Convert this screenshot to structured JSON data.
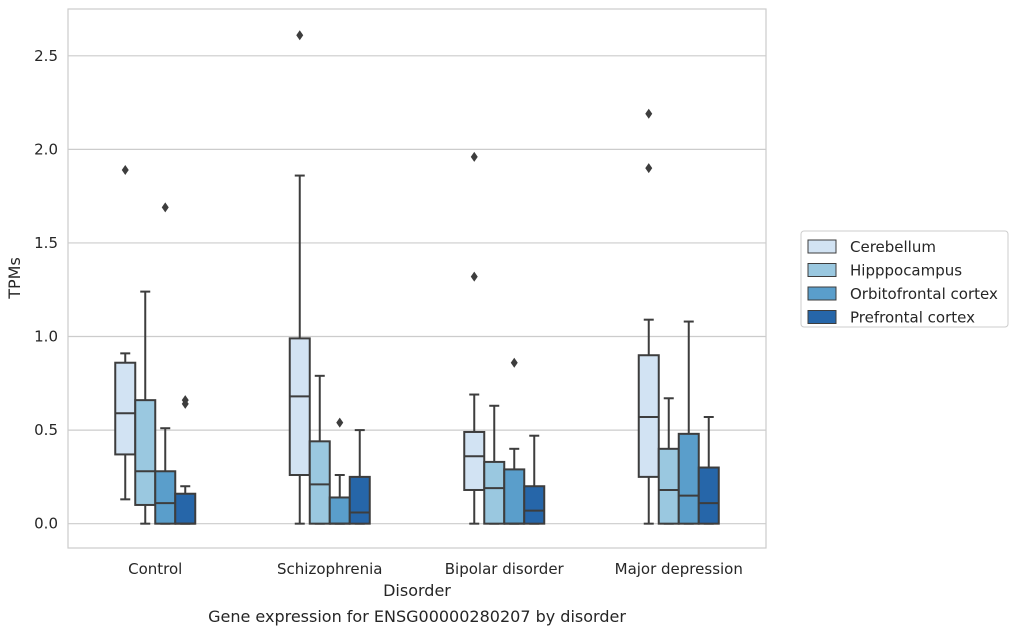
{
  "chart_data": {
    "type": "box",
    "caption": "Gene expression for ENSG00000280207 by disorder",
    "xlabel": "Disorder",
    "ylabel": "TPMs",
    "ylim": [
      -0.13,
      2.75
    ],
    "yticks": [
      "0.0",
      "0.5",
      "1.0",
      "1.5",
      "2.0",
      "2.5"
    ],
    "categories": [
      "Control",
      "Schizophrenia",
      "Bipolar disorder",
      "Major depression"
    ],
    "grid": "horizontal",
    "legend_position": "right",
    "series": [
      {
        "name": "Cerebellum",
        "color": "#d2e3f3",
        "boxes": [
          {
            "min": 0.13,
            "q1": 0.37,
            "median": 0.59,
            "q3": 0.86,
            "max": 0.91,
            "outliers": [
              1.89
            ]
          },
          {
            "min": 0.0,
            "q1": 0.26,
            "median": 0.68,
            "q3": 0.99,
            "max": 1.86,
            "outliers": [
              2.61
            ]
          },
          {
            "min": 0.0,
            "q1": 0.18,
            "median": 0.36,
            "q3": 0.49,
            "max": 0.69,
            "outliers": [
              1.32,
              1.96
            ]
          },
          {
            "min": 0.0,
            "q1": 0.25,
            "median": 0.57,
            "q3": 0.9,
            "max": 1.09,
            "outliers": [
              1.9,
              2.19
            ]
          }
        ]
      },
      {
        "name": "Hipppocampus",
        "color": "#9ac8e0",
        "boxes": [
          {
            "min": 0.0,
            "q1": 0.1,
            "median": 0.28,
            "q3": 0.66,
            "max": 1.24,
            "outliers": []
          },
          {
            "min": 0.0,
            "q1": 0.0,
            "median": 0.21,
            "q3": 0.44,
            "max": 0.79,
            "outliers": []
          },
          {
            "min": 0.0,
            "q1": 0.0,
            "median": 0.19,
            "q3": 0.33,
            "max": 0.63,
            "outliers": []
          },
          {
            "min": 0.0,
            "q1": 0.0,
            "median": 0.18,
            "q3": 0.4,
            "max": 0.67,
            "outliers": []
          }
        ]
      },
      {
        "name": "Orbitofrontal cortex",
        "color": "#5a9ecb",
        "boxes": [
          {
            "min": 0.0,
            "q1": 0.0,
            "median": 0.11,
            "q3": 0.28,
            "max": 0.51,
            "outliers": [
              1.69
            ]
          },
          {
            "min": 0.0,
            "q1": 0.0,
            "median": 0.0,
            "q3": 0.14,
            "max": 0.26,
            "outliers": [
              0.54
            ]
          },
          {
            "min": 0.0,
            "q1": 0.0,
            "median": 0.0,
            "q3": 0.29,
            "max": 0.4,
            "outliers": [
              0.86
            ]
          },
          {
            "min": 0.0,
            "q1": 0.0,
            "median": 0.15,
            "q3": 0.48,
            "max": 1.08,
            "outliers": []
          }
        ]
      },
      {
        "name": "Prefrontal cortex",
        "color": "#2666a9",
        "boxes": [
          {
            "min": 0.0,
            "q1": 0.0,
            "median": 0.0,
            "q3": 0.16,
            "max": 0.2,
            "outliers": [
              0.64,
              0.66
            ]
          },
          {
            "min": 0.0,
            "q1": 0.0,
            "median": 0.06,
            "q3": 0.25,
            "max": 0.5,
            "outliers": []
          },
          {
            "min": 0.0,
            "q1": 0.0,
            "median": 0.07,
            "q3": 0.2,
            "max": 0.47,
            "outliers": []
          },
          {
            "min": 0.0,
            "q1": 0.0,
            "median": 0.11,
            "q3": 0.3,
            "max": 0.57,
            "outliers": []
          }
        ]
      }
    ]
  }
}
